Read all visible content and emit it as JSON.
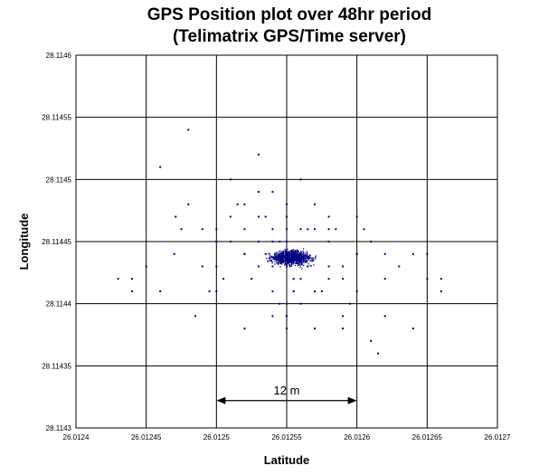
{
  "chart_data": {
    "type": "scatter",
    "title": "GPS Position plot over 48hr period",
    "subtitle": "(Telimatrix GPS/Time server)",
    "xlabel": "Latitude",
    "ylabel": "Longitude",
    "xlim": [
      26.0124,
      26.0127
    ],
    "ylim": [
      28.1143,
      28.1146
    ],
    "xticks": [
      "26.0124",
      "26.01245",
      "26.0125",
      "26.01255",
      "26.0126",
      "26.01265",
      "26.0127"
    ],
    "yticks": [
      "28.1143",
      "28.11435",
      "28.1144",
      "28.11445",
      "28.1145",
      "28.11455",
      "28.1146"
    ],
    "grid": true,
    "marker_color": "#000080",
    "annotation": {
      "text": "12 m",
      "from_x": 26.0125,
      "to_x": 26.0126,
      "y": 28.114322
    },
    "series": [
      {
        "x": [
          26.01252,
          26.01255,
          26.01258,
          26.01254,
          26.01256,
          26.0125,
          26.0126,
          26.01253,
          26.01257,
          26.01251,
          26.01259,
          26.01255,
          26.01254,
          26.01256,
          26.01252,
          26.01258,
          26.01253,
          26.01257,
          26.01255,
          26.01249,
          26.01261,
          26.01247,
          26.01263,
          26.0125,
          26.0126,
          26.01252,
          26.01258,
          26.01255,
          26.01254,
          26.01256,
          26.01245,
          26.01265,
          26.01244,
          26.01266,
          26.01248,
          26.01262,
          26.01251,
          26.01259,
          26.01246,
          26.01264,
          26.01255,
          26.01253,
          26.01257,
          26.01254,
          26.01256,
          26.01252,
          26.01258,
          26.0125,
          26.0126,
          26.01255,
          26.01243,
          26.01244,
          26.01246,
          26.01248,
          26.01253,
          26.01255,
          26.01259,
          26.01261,
          26.01264,
          26.01266,
          26.012471,
          26.012475,
          26.0125,
          26.01254,
          26.01257,
          26.01262,
          26.01265,
          26.012535,
          26.012565,
          26.012555,
          26.012545,
          26.01256,
          26.01255,
          26.01254,
          26.01257,
          26.01253,
          26.01258,
          26.01252,
          26.01259,
          26.01251,
          26.0126,
          26.0125,
          26.01261,
          26.01249,
          26.01262,
          26.01255,
          26.012545,
          26.012555,
          26.012535,
          26.012565,
          26.012525,
          26.012575,
          26.012515,
          26.012585,
          26.012505,
          26.012595,
          26.012495,
          26.012605,
          26.012485,
          26.012615
        ],
        "y": [
          28.11444,
          28.11445,
          28.11443,
          28.11446,
          28.11442,
          28.11445,
          28.11444,
          28.11443,
          28.11446,
          28.11447,
          28.11442,
          28.11448,
          28.11441,
          28.11444,
          28.11446,
          28.11445,
          28.11447,
          28.11441,
          28.11443,
          28.11446,
          28.11445,
          28.11444,
          28.11443,
          28.11441,
          28.11447,
          28.11448,
          28.11442,
          28.1144,
          28.11449,
          28.1144,
          28.11443,
          28.11442,
          28.11442,
          28.11441,
          28.11448,
          28.11439,
          28.1145,
          28.11439,
          28.11451,
          28.11444,
          28.11439,
          28.11449,
          28.11438,
          28.11445,
          28.1145,
          28.11438,
          28.11447,
          28.11443,
          28.11441,
          28.11446,
          28.11442,
          28.11441,
          28.11441,
          28.11454,
          28.11452,
          28.11438,
          28.11438,
          28.11437,
          28.11438,
          28.11442,
          28.11447,
          28.11446,
          28.11445,
          28.11439,
          28.11448,
          28.11442,
          28.11444,
          28.11444,
          28.11443,
          28.11442,
          28.11445,
          28.11446,
          28.11444,
          28.11443,
          28.11441,
          28.11445,
          28.11446,
          28.11444,
          28.11443,
          28.11445,
          28.11444,
          28.11446,
          28.11445,
          28.11443,
          28.11444,
          28.11447,
          28.1144,
          28.11441,
          28.11447,
          28.11446,
          28.11442,
          28.11441,
          28.11448,
          28.11446,
          28.11442,
          28.1144,
          28.11441,
          28.11446,
          28.11439,
          28.11436
        ]
      }
    ]
  }
}
